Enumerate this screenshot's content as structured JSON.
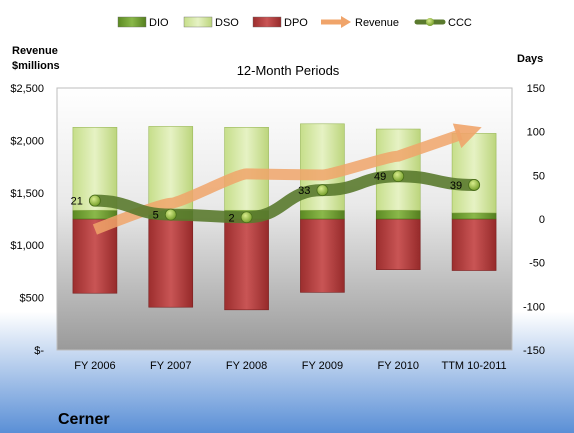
{
  "chart_data": {
    "type": "bar",
    "title": "12-Month Periods",
    "company": "Cerner",
    "left_axis_label": [
      "Revenue",
      "$millions"
    ],
    "right_axis_label": "Days",
    "categories": [
      "FY 2006",
      "FY 2007",
      "FY 2008",
      "FY 2009",
      "FY 2010",
      "TTM 10-2011"
    ],
    "left_axis": {
      "ylim": [
        0,
        2500
      ],
      "ticks": [
        "$-",
        "$500",
        "$1,000",
        "$1,500",
        "$2,000",
        "$2,500"
      ],
      "tick_values": [
        0,
        500,
        1000,
        1500,
        2000,
        2500
      ]
    },
    "right_axis": {
      "ylim": [
        -150,
        150
      ],
      "ticks": [
        "-150",
        "-100",
        "-50",
        "0",
        "50",
        "100",
        "150"
      ],
      "tick_values": [
        -150,
        -100,
        -50,
        0,
        50,
        100,
        150
      ]
    },
    "legend": {
      "placement": "top",
      "entries": [
        "DIO",
        "DSO",
        "DPO",
        "Revenue",
        "CCC"
      ]
    },
    "series": [
      {
        "name": "DIO",
        "axis": "right",
        "color": "#6e9a2a",
        "values": [
          10,
          10,
          10,
          10,
          10,
          7
        ]
      },
      {
        "name": "DSO",
        "axis": "right",
        "color": "#d6e8a4",
        "values": [
          95,
          96,
          95,
          99,
          93,
          91
        ]
      },
      {
        "name": "DPO",
        "axis": "right",
        "color": "#b23b3b",
        "values": [
          -85,
          -101,
          -104,
          -84,
          -58,
          -59
        ]
      },
      {
        "name": "Revenue",
        "axis": "left",
        "color": "#f0a46a",
        "values": [
          1150,
          1400,
          1680,
          1670,
          1850,
          2100
        ]
      },
      {
        "name": "CCC",
        "axis": "right",
        "color": "#5a7a2e",
        "values": [
          21,
          5,
          2,
          33,
          49,
          39
        ]
      }
    ],
    "ccc_labels": [
      "21",
      "5",
      "2",
      "33",
      "49",
      "39"
    ]
  }
}
